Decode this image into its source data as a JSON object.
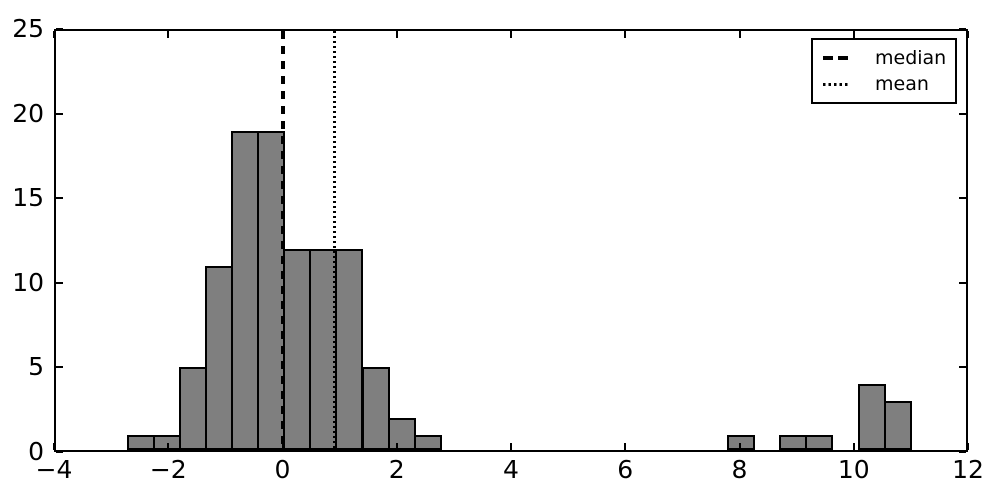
{
  "chart_data": {
    "type": "bar",
    "subtype": "histogram",
    "title": "",
    "xlabel": "",
    "ylabel": "",
    "grid": false,
    "xlim": [
      -4,
      12
    ],
    "ylim": [
      0,
      25
    ],
    "x_ticks": [
      -4,
      -2,
      0,
      2,
      4,
      6,
      8,
      10,
      12
    ],
    "x_tick_labels": [
      "−4",
      "−2",
      "0",
      "2",
      "4",
      "6",
      "8",
      "10",
      "12"
    ],
    "y_ticks": [
      0,
      5,
      10,
      15,
      20,
      25
    ],
    "y_tick_labels": [
      "0",
      "5",
      "10",
      "15",
      "20",
      "25"
    ],
    "bin_start": -2.73,
    "bin_width": 0.457,
    "counts": [
      1,
      1,
      5,
      11,
      19,
      19,
      12,
      12,
      12,
      5,
      2,
      1,
      0,
      0,
      0,
      0,
      0,
      0,
      0,
      0,
      0,
      0,
      0,
      1,
      0,
      1,
      1,
      0,
      4,
      3
    ],
    "bar_color": "#7f7f7f",
    "bar_edge_color": "#000000",
    "vlines": [
      {
        "name": "median",
        "x": 0.01,
        "style": "dashed",
        "color": "#000000",
        "linewidth": 4
      },
      {
        "name": "mean",
        "x": 0.91,
        "style": "dotted",
        "color": "#000000",
        "linewidth": 3
      }
    ],
    "legend": {
      "position": "upper right",
      "entries": [
        {
          "label": "median",
          "style": "dashed"
        },
        {
          "label": "mean",
          "style": "dotted"
        }
      ]
    }
  }
}
